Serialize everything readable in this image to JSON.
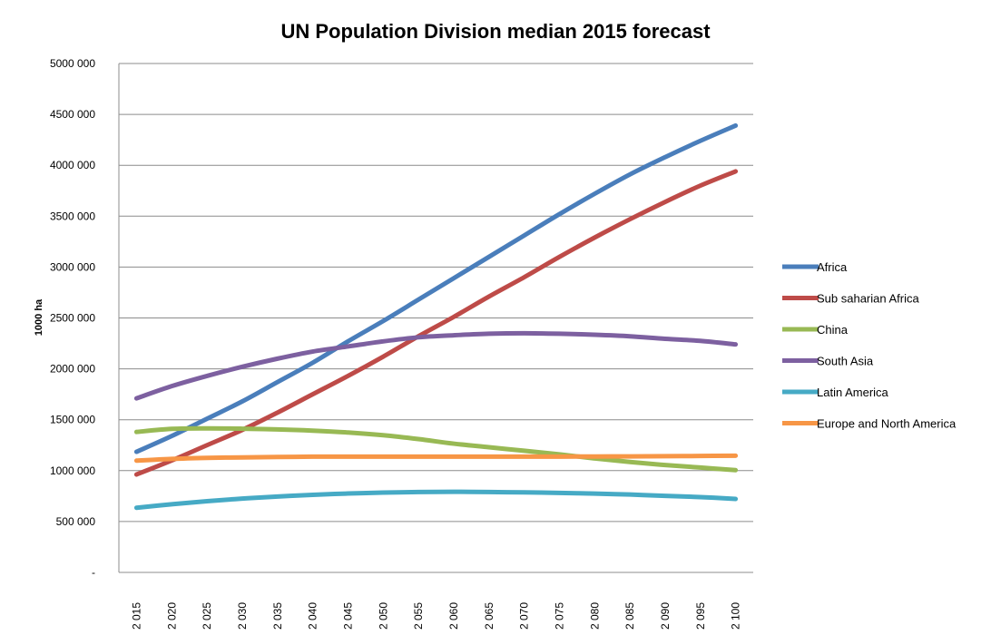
{
  "chart_data": {
    "type": "line",
    "title": "UN Population Division median 2015 forecast",
    "xlabel": "",
    "ylabel": "1000 ha",
    "categories": [
      "2 015",
      "2 020",
      "2 025",
      "2 030",
      "2 035",
      "2 040",
      "2 045",
      "2 050",
      "2 055",
      "2 060",
      "2 065",
      "2 070",
      "2 075",
      "2 080",
      "2 085",
      "2 090",
      "2 095",
      "2 100"
    ],
    "ylim": [
      0,
      5000000
    ],
    "yticks": [
      {
        "value": 0,
        "label": "-"
      },
      {
        "value": 500000,
        "label": "500 000"
      },
      {
        "value": 1000000,
        "label": "1000 000"
      },
      {
        "value": 1500000,
        "label": "1500 000"
      },
      {
        "value": 2000000,
        "label": "2000 000"
      },
      {
        "value": 2500000,
        "label": "2500 000"
      },
      {
        "value": 3000000,
        "label": "3000 000"
      },
      {
        "value": 3500000,
        "label": "3500 000"
      },
      {
        "value": 4000000,
        "label": "4000 000"
      },
      {
        "value": 4500000,
        "label": "4500 000"
      },
      {
        "value": 5000000,
        "label": "5000 000"
      }
    ],
    "grid": true,
    "legend_position": "right",
    "series": [
      {
        "name": "Africa",
        "color": "#4a7ebb",
        "values": [
          1185000,
          1340000,
          1510000,
          1680000,
          1870000,
          2060000,
          2270000,
          2470000,
          2680000,
          2890000,
          3100000,
          3310000,
          3520000,
          3720000,
          3910000,
          4080000,
          4240000,
          4390000
        ]
      },
      {
        "name": "Sub saharian Africa",
        "color": "#be4b48",
        "values": [
          962000,
          1100000,
          1250000,
          1400000,
          1570000,
          1750000,
          1930000,
          2120000,
          2320000,
          2510000,
          2710000,
          2900000,
          3100000,
          3290000,
          3470000,
          3640000,
          3800000,
          3940000
        ]
      },
      {
        "name": "China",
        "color": "#98b954",
        "values": [
          1380000,
          1410000,
          1415000,
          1412000,
          1405000,
          1393000,
          1375000,
          1348000,
          1310000,
          1265000,
          1230000,
          1195000,
          1160000,
          1120000,
          1085000,
          1055000,
          1030000,
          1005000
        ]
      },
      {
        "name": "South Asia",
        "color": "#7d60a0",
        "values": [
          1710000,
          1830000,
          1930000,
          2020000,
          2100000,
          2170000,
          2220000,
          2270000,
          2310000,
          2330000,
          2345000,
          2350000,
          2345000,
          2335000,
          2320000,
          2295000,
          2275000,
          2240000
        ]
      },
      {
        "name": "Latin America",
        "color": "#46aac5",
        "values": [
          635000,
          670000,
          700000,
          725000,
          745000,
          762000,
          775000,
          784000,
          790000,
          792000,
          790000,
          786000,
          781000,
          774000,
          765000,
          752000,
          740000,
          722000
        ]
      },
      {
        "name": "Europe and North America",
        "color": "#f79646",
        "values": [
          1098000,
          1115000,
          1125000,
          1130000,
          1134000,
          1137000,
          1138000,
          1138000,
          1138000,
          1138000,
          1138000,
          1137000,
          1138000,
          1139000,
          1140000,
          1142000,
          1144000,
          1146000
        ]
      }
    ]
  }
}
